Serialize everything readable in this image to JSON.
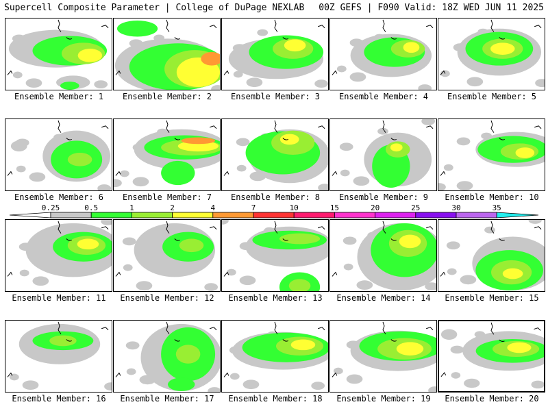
{
  "header": {
    "left": "Supercell Composite Parameter | College of DuPage NEXLAB",
    "right": "00Z GEFS | F090 Valid: 18Z WED JUN 11 2025"
  },
  "legend": {
    "levels": [
      "0.25",
      "0.5",
      "1",
      "2",
      "4",
      "7",
      "10",
      "15",
      "20",
      "25",
      "30",
      "35"
    ],
    "colors": [
      "#c8c8c8",
      "#33ff33",
      "#99ee33",
      "#ffff33",
      "#ff9933",
      "#ff3333",
      "#ff1a6e",
      "#ff33cc",
      "#dd22ee",
      "#8811ee",
      "#bb66ee",
      "#22eeee"
    ]
  },
  "panels": [
    {
      "label": "Ensemble Member: 1"
    },
    {
      "label": "Ensemble Member: 2"
    },
    {
      "label": "Ensemble Member: 3"
    },
    {
      "label": "Ensemble Member: 4"
    },
    {
      "label": "Ensemble Member: 5"
    },
    {
      "label": "Ensemble Member: 6"
    },
    {
      "label": "Ensemble Member: 7"
    },
    {
      "label": "Ensemble Member: 8"
    },
    {
      "label": "Ensemble Member: 9"
    },
    {
      "label": "Ensemble Member: 10"
    },
    {
      "label": "Ensemble Member: 11"
    },
    {
      "label": "Ensemble Member: 12"
    },
    {
      "label": "Ensemble Member: 13"
    },
    {
      "label": "Ensemble Member: 14"
    },
    {
      "label": "Ensemble Member: 15"
    },
    {
      "label": "Ensemble Member: 16"
    },
    {
      "label": "Ensemble Member: 17"
    },
    {
      "label": "Ensemble Member: 18"
    },
    {
      "label": "Ensemble Member: 19"
    },
    {
      "label": "Ensemble Member: 20"
    }
  ]
}
